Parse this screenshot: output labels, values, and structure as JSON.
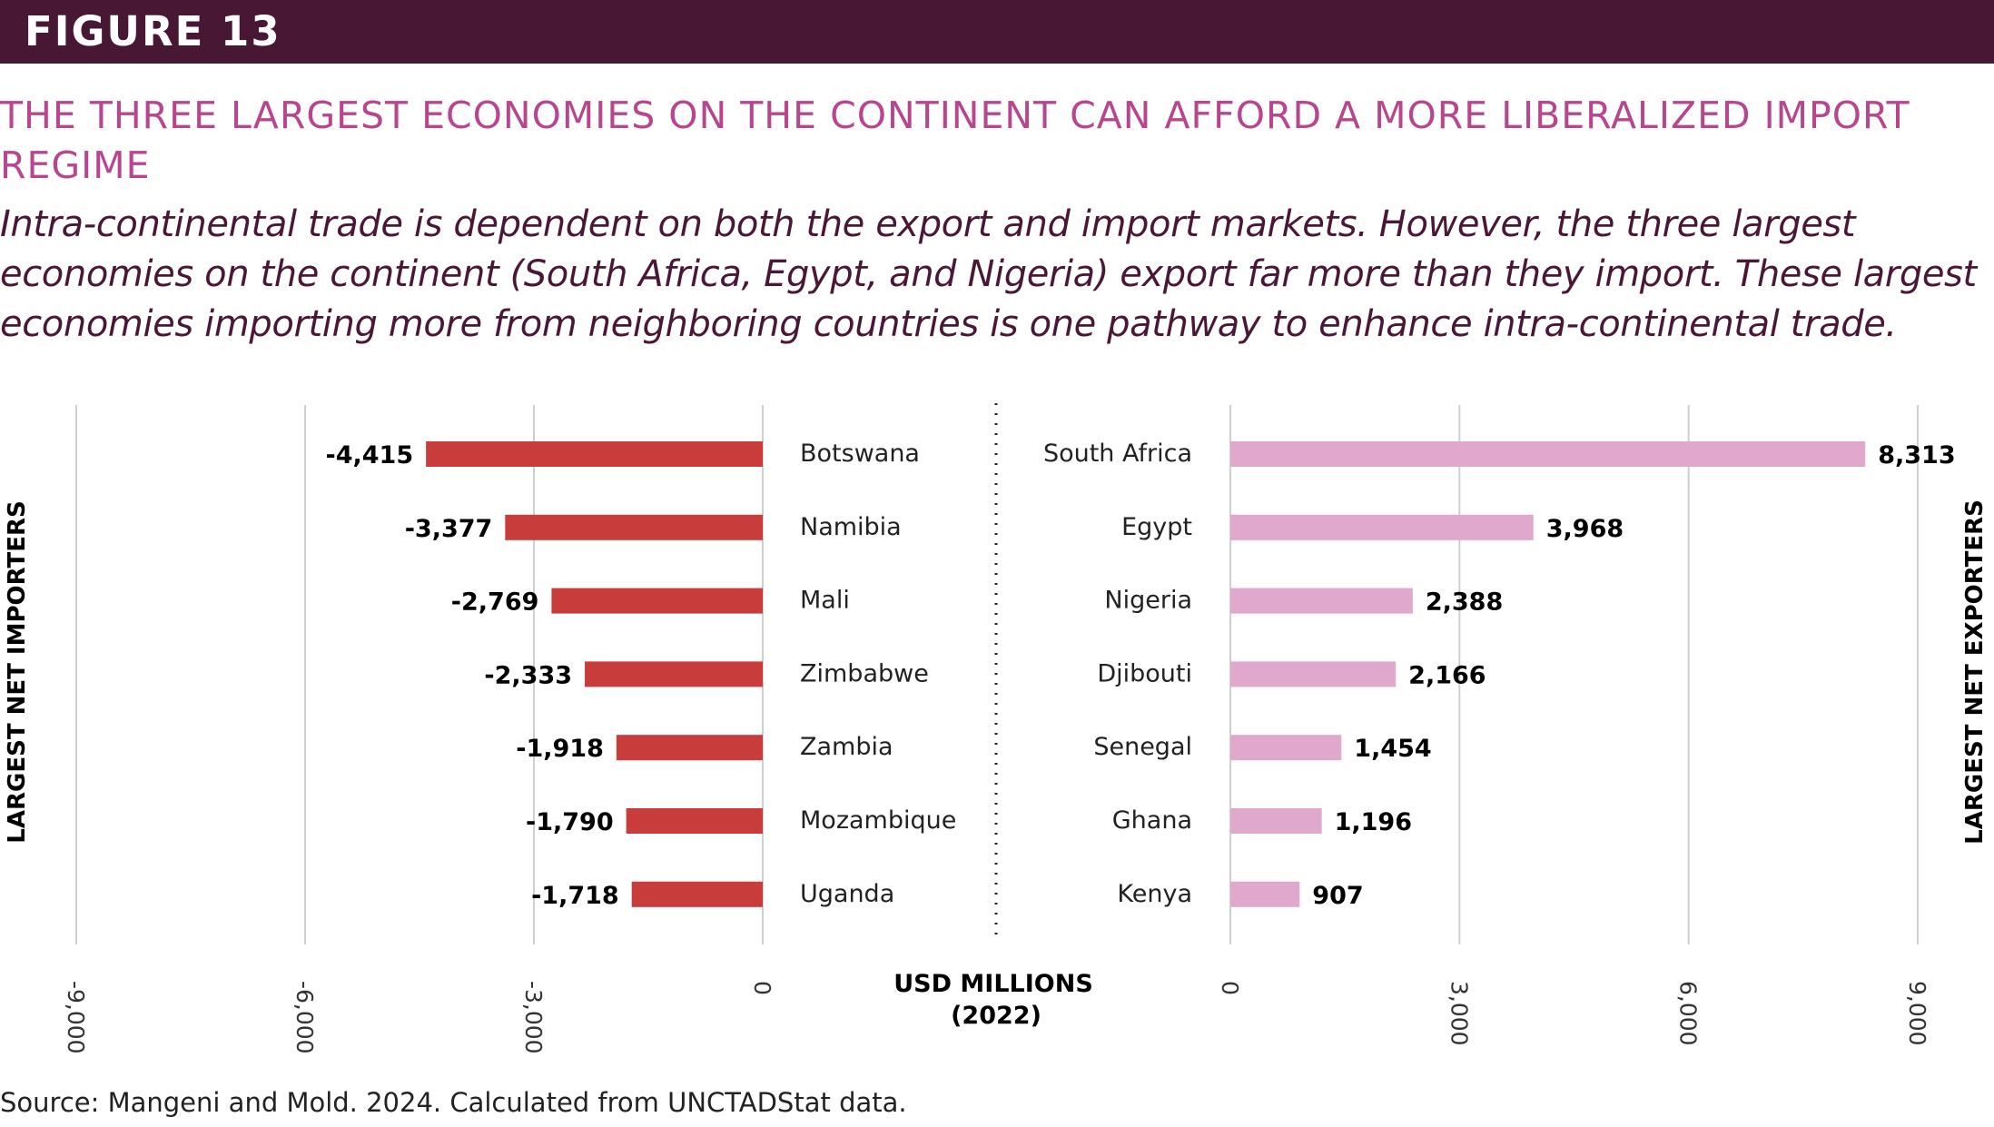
{
  "banner": {
    "label": "FIGURE 13"
  },
  "headline": "THE THREE LARGEST ECONOMIES ON THE CONTINENT CAN AFFORD A MORE LIBERALIZED IMPORT REGIME",
  "lede": "Intra-continental trade is dependent on both the export and import markets. However, the three largest economies on the continent (South Africa, Egypt, and Nigeria) export far more than they import. These largest economies importing more from neighboring countries is one pathway to enhance intra-continental trade.",
  "source": "Source: Mangeni and Mold. 2024. Calculated from UNCTADStat data.",
  "colors": {
    "banner": "#481734",
    "headline": "#b8468f",
    "importers_bar": "#c83c3c",
    "exporters_bar": "#e0a8cc"
  },
  "chart_data": [
    {
      "type": "bar",
      "orientation": "horizontal",
      "side_label": "LARGEST NET IMPORTERS",
      "categories": [
        "Botswana",
        "Namibia",
        "Mali",
        "Zimbabwe",
        "Zambia",
        "Mozambique",
        "Uganda"
      ],
      "values": [
        -4415,
        -3377,
        -2769,
        -2333,
        -1918,
        -1790,
        -1718
      ],
      "value_labels": [
        "-4,415",
        "-3,377",
        "-2,769",
        "-2,333",
        "-1,918",
        "-1,790",
        "-1,718"
      ],
      "xlim": [
        -9000,
        0
      ],
      "ticks": [
        -9000,
        -6000,
        -3000,
        0
      ],
      "tick_labels": [
        "-9,000",
        "-6,000",
        "-3,000",
        "0"
      ],
      "grid": true
    },
    {
      "type": "bar",
      "orientation": "horizontal",
      "side_label": "LARGEST NET EXPORTERS",
      "categories": [
        "South Africa",
        "Egypt",
        "Nigeria",
        "Djibouti",
        "Senegal",
        "Ghana",
        "Kenya"
      ],
      "values": [
        8313,
        3968,
        2388,
        2166,
        1454,
        1196,
        907
      ],
      "value_labels": [
        "8,313",
        "3,968",
        "2,388",
        "2,166",
        "1,454",
        "1,196",
        "907"
      ],
      "xlim": [
        0,
        9000
      ],
      "ticks": [
        0,
        3000,
        6000,
        9000
      ],
      "tick_labels": [
        "0",
        "3,000",
        "6,000",
        "9,000"
      ],
      "grid": true
    }
  ],
  "unit_label": {
    "line1": "USD MILLIONS",
    "line2": "(2022)"
  }
}
